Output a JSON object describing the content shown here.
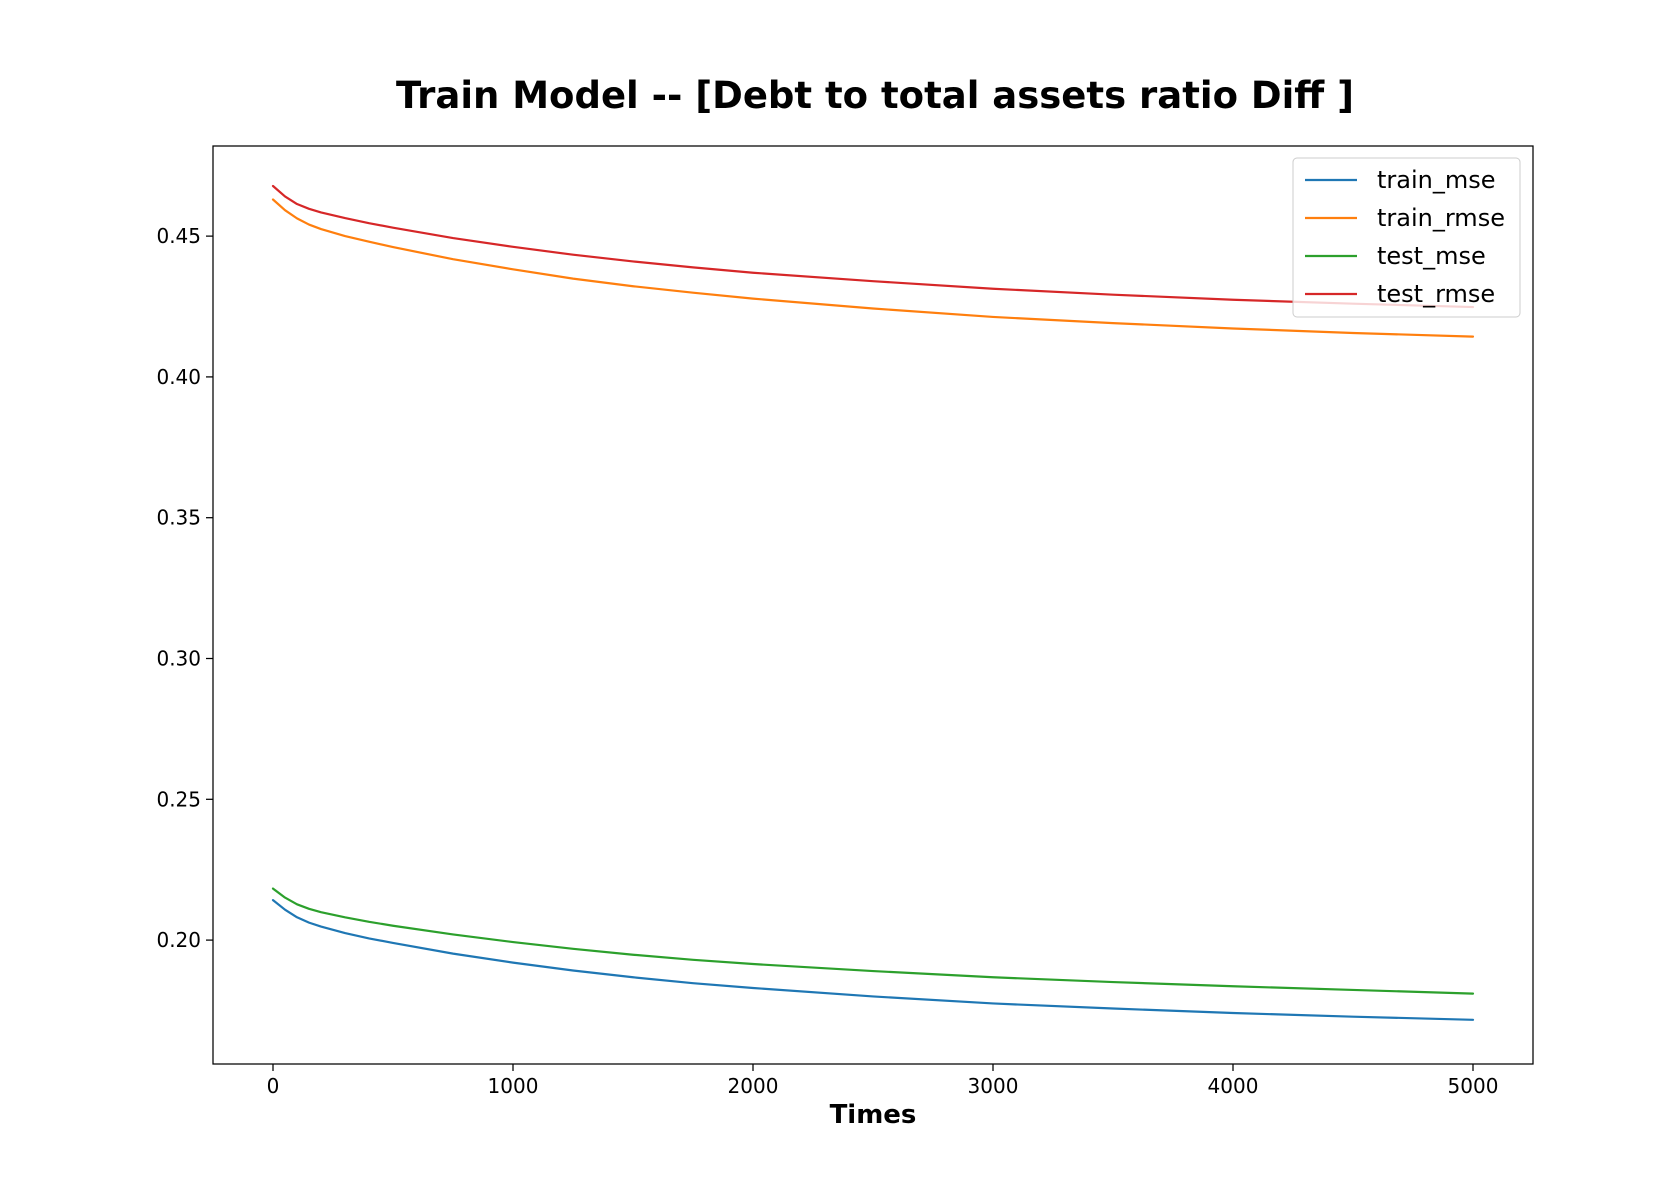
{
  "chart_data": {
    "type": "line",
    "title": "Train Model -- [Debt to total assets ratio Diff ]",
    "xlabel": "Times",
    "ylabel": "",
    "xlim": [
      -250,
      5250
    ],
    "ylim": [
      0.156,
      0.482
    ],
    "x_ticks": [
      0,
      1000,
      2000,
      3000,
      4000,
      5000
    ],
    "x_tick_labels": [
      "0",
      "1000",
      "2000",
      "3000",
      "4000",
      "5000"
    ],
    "y_ticks": [
      0.2,
      0.25,
      0.3,
      0.35,
      0.4,
      0.45
    ],
    "y_tick_labels": [
      "0.20",
      "0.25",
      "0.30",
      "0.35",
      "0.40",
      "0.45"
    ],
    "grid": false,
    "legend_position": "top-right",
    "x": [
      0,
      50,
      100,
      150,
      200,
      300,
      400,
      500,
      750,
      1000,
      1250,
      1500,
      1750,
      2000,
      2500,
      3000,
      3500,
      4000,
      4500,
      5000
    ],
    "series": [
      {
        "name": "train_mse",
        "color": "#1f77b4",
        "values": [
          0.2142,
          0.2108,
          0.2081,
          0.2062,
          0.2048,
          0.2025,
          0.2006,
          0.199,
          0.1952,
          0.192,
          0.1892,
          0.1868,
          0.1847,
          0.183,
          0.18,
          0.1775,
          0.1757,
          0.1741,
          0.1728,
          0.1717
        ]
      },
      {
        "name": "train_rmse",
        "color": "#ff7f0e",
        "values": [
          0.463,
          0.4592,
          0.4563,
          0.4541,
          0.4525,
          0.45,
          0.448,
          0.4461,
          0.4418,
          0.4382,
          0.4349,
          0.4322,
          0.4299,
          0.4278,
          0.4243,
          0.4213,
          0.4191,
          0.4172,
          0.4156,
          0.4143
        ]
      },
      {
        "name": "test_mse",
        "color": "#2ca02c",
        "values": [
          0.2183,
          0.2151,
          0.2127,
          0.2111,
          0.2099,
          0.2081,
          0.2065,
          0.2051,
          0.202,
          0.1993,
          0.1969,
          0.1948,
          0.193,
          0.1915,
          0.189,
          0.1868,
          0.1851,
          0.1836,
          0.1823,
          0.181
        ]
      },
      {
        "name": "test_rmse",
        "color": "#d62728",
        "values": [
          0.4678,
          0.4641,
          0.4614,
          0.4597,
          0.4584,
          0.4564,
          0.4546,
          0.453,
          0.4493,
          0.4462,
          0.4434,
          0.441,
          0.4389,
          0.437,
          0.434,
          0.4313,
          0.4292,
          0.4274,
          0.426,
          0.4248
        ]
      }
    ]
  }
}
